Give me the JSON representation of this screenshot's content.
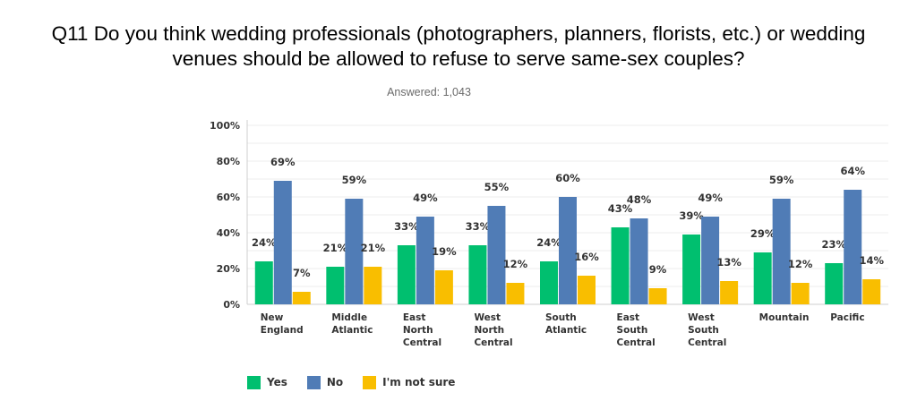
{
  "title_line1": "Q11 Do you think wedding professionals (photographers, planners, florists, etc.) or wedding",
  "title_line2": "venues should be allowed to refuse to serve same-sex couples?",
  "answered": "Answered: 1,043",
  "colors": {
    "yes": "#00bf6f",
    "no": "#507cb6",
    "not_sure": "#f9be00"
  },
  "chart_data": {
    "type": "bar",
    "title": "Q11 Do you think wedding professionals (photographers, planners, florists, etc.) or wedding venues should be allowed to refuse to serve same-sex couples?",
    "categories": [
      [
        "New",
        "England"
      ],
      [
        "Middle",
        "Atlantic"
      ],
      [
        "East",
        "North",
        "Central"
      ],
      [
        "West",
        "North",
        "Central"
      ],
      [
        "South",
        "Atlantic"
      ],
      [
        "East",
        "South",
        "Central"
      ],
      [
        "West",
        "South",
        "Central"
      ],
      [
        "Mountain"
      ],
      [
        "Pacific"
      ]
    ],
    "series": [
      {
        "name": "Yes",
        "values": [
          24,
          21,
          33,
          33,
          24,
          43,
          39,
          29,
          23
        ]
      },
      {
        "name": "No",
        "values": [
          69,
          59,
          49,
          55,
          60,
          48,
          49,
          59,
          64
        ]
      },
      {
        "name": "I'm not sure",
        "values": [
          7,
          21,
          19,
          12,
          16,
          9,
          13,
          12,
          14
        ]
      }
    ],
    "value_suffix": "%",
    "y_ticks": [
      "0%",
      "20%",
      "40%",
      "60%",
      "80%",
      "100%"
    ],
    "ylim": [
      0,
      100
    ],
    "grid": true,
    "legend_position": "bottom-left"
  }
}
